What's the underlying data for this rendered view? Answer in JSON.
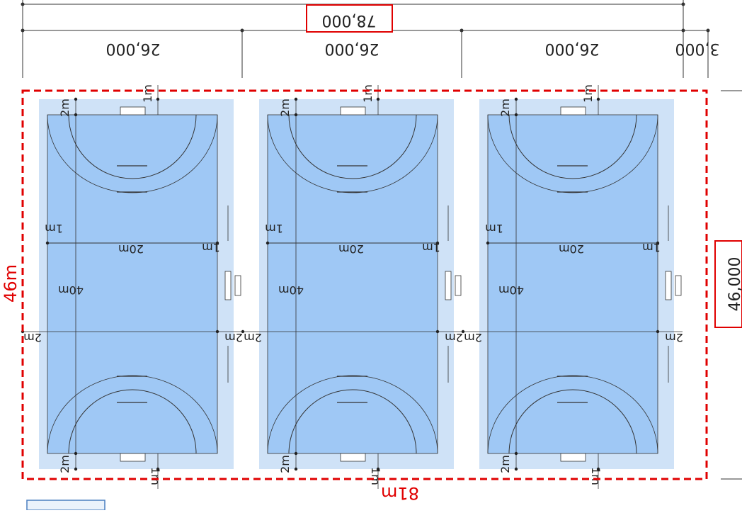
{
  "dimensions": {
    "total_width_label": "78,000",
    "segment_labels": [
      "26,000",
      "26,000",
      "26,000",
      "3,000"
    ],
    "height_label": "46,000"
  },
  "annotations": {
    "overall_width": "81m",
    "overall_height": "46m"
  },
  "court_labels": {
    "width_20m": "20m",
    "length_40m": "40m",
    "goal_area_2m": "2m",
    "offset_1m": "1m",
    "side_2m": "2m"
  },
  "colors": {
    "court_surround": "#cfe2f7",
    "court_fill": "#9fc8f5",
    "annotation_red": "#e00000",
    "line_dark": "#333333"
  },
  "courts": [
    {
      "id": 1
    },
    {
      "id": 2
    },
    {
      "id": 3
    }
  ]
}
